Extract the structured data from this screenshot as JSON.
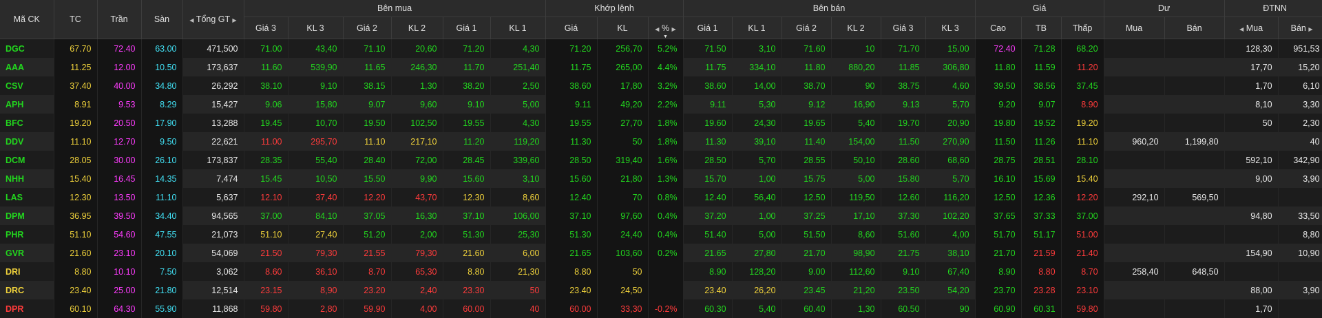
{
  "colors": {
    "up": "#22d61e",
    "down": "#ff3b3b",
    "ref": "#f0d23b",
    "ceil": "#ff3cff",
    "floor": "#41e1f5",
    "neutral": "#e8e8e8"
  },
  "header": {
    "symbol": "Mã CK",
    "ref": "TC",
    "ceil": "Trần",
    "floor": "Sàn",
    "total": "Tổng GT",
    "buy_group": "Bên mua",
    "match_group": "Khớp lệnh",
    "sell_group": "Bên bán",
    "price_group": "Giá",
    "remain_group": "Dư",
    "foreign_group": "ĐTNN",
    "price3": "Giá 3",
    "vol3": "KL 3",
    "price2": "Giá 2",
    "vol2": "KL 2",
    "price1": "Giá 1",
    "vol1": "KL 1",
    "match_price": "Giá",
    "match_vol": "KL",
    "match_pct": "%",
    "high": "Cao",
    "avg": "TB",
    "low": "Thấp",
    "remain_buy": "Mua",
    "remain_sell": "Bán",
    "foreign_buy": "Mua",
    "foreign_sell": "Bán",
    "nav_left": "◀",
    "nav_right": "▶",
    "sort_arrow": "▼"
  },
  "rows": [
    {
      "s": "DGC",
      "sc": "up",
      "ref": "67.70",
      "ceil": "72.40",
      "floor": "63.00",
      "total": "471,500",
      "b": [
        [
          "71.00",
          "43,40",
          "up"
        ],
        [
          "71.10",
          "20,60",
          "up"
        ],
        [
          "71.20",
          "4,30",
          "up"
        ]
      ],
      "m": [
        "71.20",
        "256,70",
        "5.2%",
        "up"
      ],
      "a": [
        [
          "71.50",
          "3,10",
          "up"
        ],
        [
          "71.60",
          "10",
          "up"
        ],
        [
          "71.70",
          "15,00",
          "up"
        ]
      ],
      "hi": [
        "72.40",
        "ceil"
      ],
      "avg": [
        "71.28",
        "up"
      ],
      "lo": [
        "68.20",
        "up"
      ],
      "rb": "",
      "rs": "",
      "fb": "128,30",
      "fs": "951,53"
    },
    {
      "s": "AAA",
      "sc": "up",
      "ref": "11.25",
      "ceil": "12.00",
      "floor": "10.50",
      "total": "173,637",
      "b": [
        [
          "11.60",
          "539,90",
          "up"
        ],
        [
          "11.65",
          "246,30",
          "up"
        ],
        [
          "11.70",
          "251,40",
          "up"
        ]
      ],
      "m": [
        "11.75",
        "265,00",
        "4.4%",
        "up"
      ],
      "a": [
        [
          "11.75",
          "334,10",
          "up"
        ],
        [
          "11.80",
          "880,20",
          "up"
        ],
        [
          "11.85",
          "306,80",
          "up"
        ]
      ],
      "hi": [
        "11.80",
        "up"
      ],
      "avg": [
        "11.59",
        "up"
      ],
      "lo": [
        "11.20",
        "down"
      ],
      "rb": "",
      "rs": "",
      "fb": "17,70",
      "fs": "15,20"
    },
    {
      "s": "CSV",
      "sc": "up",
      "ref": "37.40",
      "ceil": "40.00",
      "floor": "34.80",
      "total": "26,292",
      "b": [
        [
          "38.10",
          "9,10",
          "up"
        ],
        [
          "38.15",
          "1,30",
          "up"
        ],
        [
          "38.20",
          "2,50",
          "up"
        ]
      ],
      "m": [
        "38.60",
        "17,80",
        "3.2%",
        "up"
      ],
      "a": [
        [
          "38.60",
          "14,00",
          "up"
        ],
        [
          "38.70",
          "90",
          "up"
        ],
        [
          "38.75",
          "4,60",
          "up"
        ]
      ],
      "hi": [
        "39.50",
        "up"
      ],
      "avg": [
        "38.56",
        "up"
      ],
      "lo": [
        "37.45",
        "up"
      ],
      "rb": "",
      "rs": "",
      "fb": "1,70",
      "fs": "6,10"
    },
    {
      "s": "APH",
      "sc": "up",
      "ref": "8.91",
      "ceil": "9.53",
      "floor": "8.29",
      "total": "15,427",
      "b": [
        [
          "9.06",
          "15,80",
          "up"
        ],
        [
          "9.07",
          "9,60",
          "up"
        ],
        [
          "9.10",
          "5,00",
          "up"
        ]
      ],
      "m": [
        "9.11",
        "49,20",
        "2.2%",
        "up"
      ],
      "a": [
        [
          "9.11",
          "5,30",
          "up"
        ],
        [
          "9.12",
          "16,90",
          "up"
        ],
        [
          "9.13",
          "5,70",
          "up"
        ]
      ],
      "hi": [
        "9.20",
        "up"
      ],
      "avg": [
        "9.07",
        "up"
      ],
      "lo": [
        "8.90",
        "down"
      ],
      "rb": "",
      "rs": "",
      "fb": "8,10",
      "fs": "3,30"
    },
    {
      "s": "BFC",
      "sc": "up",
      "ref": "19.20",
      "ceil": "20.50",
      "floor": "17.90",
      "total": "13,288",
      "b": [
        [
          "19.45",
          "10,70",
          "up"
        ],
        [
          "19.50",
          "102,50",
          "up"
        ],
        [
          "19.55",
          "4,30",
          "up"
        ]
      ],
      "m": [
        "19.55",
        "27,70",
        "1.8%",
        "up"
      ],
      "a": [
        [
          "19.60",
          "24,30",
          "up"
        ],
        [
          "19.65",
          "5,40",
          "up"
        ],
        [
          "19.70",
          "20,90",
          "up"
        ]
      ],
      "hi": [
        "19.80",
        "up"
      ],
      "avg": [
        "19.52",
        "up"
      ],
      "lo": [
        "19.20",
        "ref"
      ],
      "rb": "",
      "rs": "",
      "fb": "50",
      "fs": "2,30"
    },
    {
      "s": "DDV",
      "sc": "up",
      "ref": "11.10",
      "ceil": "12.70",
      "floor": "9.50",
      "total": "22,621",
      "b": [
        [
          "11.00",
          "295,70",
          "down"
        ],
        [
          "11.10",
          "217,10",
          "ref"
        ],
        [
          "11.20",
          "119,20",
          "up"
        ]
      ],
      "m": [
        "11.30",
        "50",
        "1.8%",
        "up"
      ],
      "a": [
        [
          "11.30",
          "39,10",
          "up"
        ],
        [
          "11.40",
          "154,00",
          "up"
        ],
        [
          "11.50",
          "270,90",
          "up"
        ]
      ],
      "hi": [
        "11.50",
        "up"
      ],
      "avg": [
        "11.26",
        "up"
      ],
      "lo": [
        "11.10",
        "ref"
      ],
      "rb": "960,20",
      "rs": "1,199,80",
      "fb": "",
      "fs": "40"
    },
    {
      "s": "DCM",
      "sc": "up",
      "ref": "28.05",
      "ceil": "30.00",
      "floor": "26.10",
      "total": "173,837",
      "b": [
        [
          "28.35",
          "55,40",
          "up"
        ],
        [
          "28.40",
          "72,00",
          "up"
        ],
        [
          "28.45",
          "339,60",
          "up"
        ]
      ],
      "m": [
        "28.50",
        "319,40",
        "1.6%",
        "up"
      ],
      "a": [
        [
          "28.50",
          "5,70",
          "up"
        ],
        [
          "28.55",
          "50,10",
          "up"
        ],
        [
          "28.60",
          "68,60",
          "up"
        ]
      ],
      "hi": [
        "28.75",
        "up"
      ],
      "avg": [
        "28.51",
        "up"
      ],
      "lo": [
        "28.10",
        "up"
      ],
      "rb": "",
      "rs": "",
      "fb": "592,10",
      "fs": "342,90"
    },
    {
      "s": "NHH",
      "sc": "up",
      "ref": "15.40",
      "ceil": "16.45",
      "floor": "14.35",
      "total": "7,474",
      "b": [
        [
          "15.45",
          "10,50",
          "up"
        ],
        [
          "15.50",
          "9,90",
          "up"
        ],
        [
          "15.60",
          "3,10",
          "up"
        ]
      ],
      "m": [
        "15.60",
        "21,80",
        "1.3%",
        "up"
      ],
      "a": [
        [
          "15.70",
          "1,00",
          "up"
        ],
        [
          "15.75",
          "5,00",
          "up"
        ],
        [
          "15.80",
          "5,70",
          "up"
        ]
      ],
      "hi": [
        "16.10",
        "up"
      ],
      "avg": [
        "15.69",
        "up"
      ],
      "lo": [
        "15.40",
        "ref"
      ],
      "rb": "",
      "rs": "",
      "fb": "9,00",
      "fs": "3,90"
    },
    {
      "s": "LAS",
      "sc": "up",
      "ref": "12.30",
      "ceil": "13.50",
      "floor": "11.10",
      "total": "5,637",
      "b": [
        [
          "12.10",
          "37,40",
          "down"
        ],
        [
          "12.20",
          "43,70",
          "down"
        ],
        [
          "12.30",
          "8,60",
          "ref"
        ]
      ],
      "m": [
        "12.40",
        "70",
        "0.8%",
        "up"
      ],
      "a": [
        [
          "12.40",
          "56,40",
          "up"
        ],
        [
          "12.50",
          "119,50",
          "up"
        ],
        [
          "12.60",
          "116,20",
          "up"
        ]
      ],
      "hi": [
        "12.50",
        "up"
      ],
      "avg": [
        "12.36",
        "up"
      ],
      "lo": [
        "12.20",
        "down"
      ],
      "rb": "292,10",
      "rs": "569,50",
      "fb": "",
      "fs": ""
    },
    {
      "s": "DPM",
      "sc": "up",
      "ref": "36.95",
      "ceil": "39.50",
      "floor": "34.40",
      "total": "94,565",
      "b": [
        [
          "37.00",
          "84,10",
          "up"
        ],
        [
          "37.05",
          "16,30",
          "up"
        ],
        [
          "37.10",
          "106,00",
          "up"
        ]
      ],
      "m": [
        "37.10",
        "97,60",
        "0.4%",
        "up"
      ],
      "a": [
        [
          "37.20",
          "1,00",
          "up"
        ],
        [
          "37.25",
          "17,10",
          "up"
        ],
        [
          "37.30",
          "102,20",
          "up"
        ]
      ],
      "hi": [
        "37.65",
        "up"
      ],
      "avg": [
        "37.33",
        "up"
      ],
      "lo": [
        "37.00",
        "up"
      ],
      "rb": "",
      "rs": "",
      "fb": "94,80",
      "fs": "33,50"
    },
    {
      "s": "PHR",
      "sc": "up",
      "ref": "51.10",
      "ceil": "54.60",
      "floor": "47.55",
      "total": "21,073",
      "b": [
        [
          "51.10",
          "27,40",
          "ref"
        ],
        [
          "51.20",
          "2,00",
          "up"
        ],
        [
          "51.30",
          "25,30",
          "up"
        ]
      ],
      "m": [
        "51.30",
        "24,40",
        "0.4%",
        "up"
      ],
      "a": [
        [
          "51.40",
          "5,00",
          "up"
        ],
        [
          "51.50",
          "8,60",
          "up"
        ],
        [
          "51.60",
          "4,00",
          "up"
        ]
      ],
      "hi": [
        "51.70",
        "up"
      ],
      "avg": [
        "51.17",
        "up"
      ],
      "lo": [
        "51.00",
        "down"
      ],
      "rb": "",
      "rs": "",
      "fb": "",
      "fs": "8,80"
    },
    {
      "s": "GVR",
      "sc": "up",
      "ref": "21.60",
      "ceil": "23.10",
      "floor": "20.10",
      "total": "54,069",
      "b": [
        [
          "21.50",
          "79,30",
          "down"
        ],
        [
          "21.55",
          "79,30",
          "down"
        ],
        [
          "21.60",
          "6,00",
          "ref"
        ]
      ],
      "m": [
        "21.65",
        "103,60",
        "0.2%",
        "up"
      ],
      "a": [
        [
          "21.65",
          "27,80",
          "up"
        ],
        [
          "21.70",
          "98,90",
          "up"
        ],
        [
          "21.75",
          "38,10",
          "up"
        ]
      ],
      "hi": [
        "21.70",
        "up"
      ],
      "avg": [
        "21.59",
        "down"
      ],
      "lo": [
        "21.40",
        "down"
      ],
      "rb": "",
      "rs": "",
      "fb": "154,90",
      "fs": "10,90"
    },
    {
      "s": "DRI",
      "sc": "ref",
      "ref": "8.80",
      "ceil": "10.10",
      "floor": "7.50",
      "total": "3,062",
      "b": [
        [
          "8.60",
          "36,10",
          "down"
        ],
        [
          "8.70",
          "65,30",
          "down"
        ],
        [
          "8.80",
          "21,30",
          "ref"
        ]
      ],
      "m": [
        "8.80",
        "50",
        "",
        "ref"
      ],
      "a": [
        [
          "8.90",
          "128,20",
          "up"
        ],
        [
          "9.00",
          "112,60",
          "up"
        ],
        [
          "9.10",
          "67,40",
          "up"
        ]
      ],
      "hi": [
        "8.90",
        "up"
      ],
      "avg": [
        "8.80",
        "down"
      ],
      "lo": [
        "8.70",
        "down"
      ],
      "rb": "258,40",
      "rs": "648,50",
      "fb": "",
      "fs": ""
    },
    {
      "s": "DRC",
      "sc": "ref",
      "ref": "23.40",
      "ceil": "25.00",
      "floor": "21.80",
      "total": "12,514",
      "b": [
        [
          "23.15",
          "8,90",
          "down"
        ],
        [
          "23.20",
          "2,40",
          "down"
        ],
        [
          "23.30",
          "50",
          "down"
        ]
      ],
      "m": [
        "23.40",
        "24,50",
        "",
        "ref"
      ],
      "a": [
        [
          "23.40",
          "26,20",
          "ref"
        ],
        [
          "23.45",
          "21,20",
          "up"
        ],
        [
          "23.50",
          "54,20",
          "up"
        ]
      ],
      "hi": [
        "23.70",
        "up"
      ],
      "avg": [
        "23.28",
        "down"
      ],
      "lo": [
        "23.10",
        "down"
      ],
      "rb": "",
      "rs": "",
      "fb": "88,00",
      "fs": "3,90"
    },
    {
      "s": "DPR",
      "sc": "down",
      "ref": "60.10",
      "ceil": "64.30",
      "floor": "55.90",
      "total": "11,868",
      "b": [
        [
          "59.80",
          "2,80",
          "down"
        ],
        [
          "59.90",
          "4,00",
          "down"
        ],
        [
          "60.00",
          "40",
          "down"
        ]
      ],
      "m": [
        "60.00",
        "33,30",
        "-0.2%",
        "down"
      ],
      "a": [
        [
          "60.30",
          "5,40",
          "up"
        ],
        [
          "60.40",
          "1,30",
          "up"
        ],
        [
          "60.50",
          "90",
          "up"
        ]
      ],
      "hi": [
        "60.90",
        "up"
      ],
      "avg": [
        "60.31",
        "up"
      ],
      "lo": [
        "59.80",
        "down"
      ],
      "rb": "",
      "rs": "",
      "fb": "1,70",
      "fs": ""
    }
  ]
}
